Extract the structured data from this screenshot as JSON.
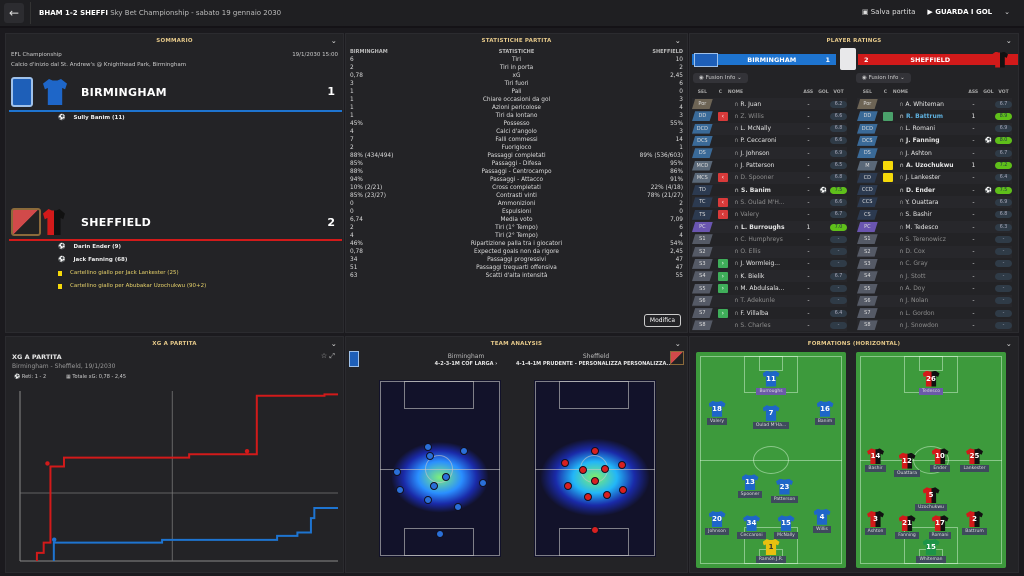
{
  "topbar": {
    "score_short": "BHAM 1-2 SHEFFI",
    "competition_date": "Sky Bet Championship - sabato 19 gennaio 2030",
    "save_label": "Salva partita",
    "goals_label": "GUARDA I GOL"
  },
  "summary": {
    "title": "SOMMARIO",
    "competition": "EFL Championship",
    "datetime": "19/1/2030 15:00",
    "venue": "Calcio d'inizio dal St. Andrew's @ Knighthead Park, Birmingham",
    "home": {
      "name": "BIRMINGHAM",
      "score": "1",
      "color": "#1e74d0",
      "events": [
        {
          "type": "goal",
          "text": "Sully Banim (11)"
        }
      ]
    },
    "away": {
      "name": "SHEFFIELD",
      "score": "2",
      "color": "#d21a1a",
      "events": [
        {
          "type": "goal",
          "text": "Darin Ender (9)"
        },
        {
          "type": "goal",
          "text": "Jack Fanning (68)"
        },
        {
          "type": "yellow",
          "text": "Cartellino giallo per Jack Lankester (25)"
        },
        {
          "type": "yellow",
          "text": "Cartellino giallo per Abubakar Uzochukwu (90+2)"
        }
      ]
    }
  },
  "stats": {
    "title": "STATISTICHE PARTITA",
    "headers": [
      "BIRMINGHAM",
      "STATISTICHE",
      "SHEFFIELD"
    ],
    "rows": [
      [
        "6",
        "Tiri",
        "10"
      ],
      [
        "2",
        "Tiri in porta",
        "2"
      ],
      [
        "0,78",
        "xG",
        "2,45"
      ],
      [
        "3",
        "Tiri fuori",
        "6"
      ],
      [
        "1",
        "Pali",
        "0"
      ],
      [
        "1",
        "Chiare occasioni da gol",
        "3"
      ],
      [
        "1",
        "Azioni pericolose",
        "4"
      ],
      [
        "1",
        "Tiri da lontano",
        "3"
      ],
      [
        "45%",
        "Possesso",
        "55%"
      ],
      [
        "4",
        "Calci d'angolo",
        "3"
      ],
      [
        "7",
        "Falli commessi",
        "14"
      ],
      [
        "2",
        "Fuorigioco",
        "1"
      ],
      [
        "88% (434/494)",
        "Passaggi completati",
        "89% (536/603)"
      ],
      [
        "85%",
        "Passaggi - Difesa",
        "95%"
      ],
      [
        "88%",
        "Passaggi - Centrocampo",
        "86%"
      ],
      [
        "94%",
        "Passaggi - Attacco",
        "91%"
      ],
      [
        "10% (2/21)",
        "Cross completati",
        "22% (4/18)"
      ],
      [
        "85% (23/27)",
        "Contrasti vinti",
        "78% (21/27)"
      ],
      [
        "0",
        "Ammonizioni",
        "2"
      ],
      [
        "0",
        "Espulsioni",
        "0"
      ],
      [
        "6,74",
        "Media voto",
        "7,09"
      ],
      [
        "2",
        "Tiri (1° Tempo)",
        "6"
      ],
      [
        "4",
        "Tiri (2° Tempo)",
        "4"
      ],
      [
        "46%",
        "Ripartizione palla tra i giocatori",
        "54%"
      ],
      [
        "0,78",
        "Expected goals non da rigore",
        "2,45"
      ],
      [
        "34",
        "Passaggi progressivi",
        "47"
      ],
      [
        "51",
        "Passaggi trequarti offensiva",
        "47"
      ],
      [
        "63",
        "Scatti d'alta intensità",
        "55"
      ]
    ],
    "edit_label": "Modifica"
  },
  "ratings": {
    "title": "PLAYER RATINGS",
    "fusion_label": "Fusion Info",
    "col_headers": [
      "SEL",
      "C",
      "NOME",
      "ASS",
      "GOL",
      "VOT"
    ],
    "home": {
      "name": "BIRMINGHAM",
      "score": "1",
      "players": [
        {
          "pos": "Por",
          "c": "",
          "name": "R. Juan",
          "ass": "-",
          "gol": "",
          "vot": "6.2",
          "dim": false
        },
        {
          "pos": "DD",
          "c": "out",
          "name": "Z. Willis",
          "ass": "-",
          "gol": "",
          "vot": "6.6",
          "dim": true
        },
        {
          "pos": "DCD",
          "c": "",
          "name": "L. McNally",
          "ass": "-",
          "gol": "",
          "vot": "6.8",
          "dim": false
        },
        {
          "pos": "DCS",
          "c": "",
          "name": "P. Ceccaroni",
          "ass": "-",
          "gol": "",
          "vot": "6.6",
          "dim": false
        },
        {
          "pos": "DS",
          "c": "",
          "name": "J. Johnson",
          "ass": "-",
          "gol": "",
          "vot": "6.9",
          "dim": false
        },
        {
          "pos": "MCD",
          "c": "",
          "name": "J. Patterson",
          "ass": "-",
          "gol": "",
          "vot": "6.5",
          "dim": false
        },
        {
          "pos": "MCS",
          "c": "out",
          "name": "D. Spooner",
          "ass": "-",
          "gol": "",
          "vot": "6.8",
          "dim": true
        },
        {
          "pos": "TD",
          "c": "",
          "name": "S. Banim",
          "ass": "-",
          "gol": "goal",
          "vot": "7.5",
          "dim": false,
          "hi": true
        },
        {
          "pos": "TC",
          "c": "out",
          "name": "S. Oulad M'H...",
          "ass": "-",
          "gol": "",
          "vot": "6.6",
          "dim": true
        },
        {
          "pos": "TS",
          "c": "out",
          "name": "Valery",
          "ass": "-",
          "gol": "",
          "vot": "6.7",
          "dim": true
        },
        {
          "pos": "PC",
          "c": "",
          "name": "L. Burroughs",
          "ass": "1",
          "gol": "",
          "vot": "7.0",
          "dim": false,
          "hi": true
        },
        {
          "pos": "S1",
          "c": "",
          "name": "C. Humphreys",
          "ass": "-",
          "gol": "",
          "vot": "-",
          "dim": true
        },
        {
          "pos": "S2",
          "c": "",
          "name": "O. Ellis",
          "ass": "-",
          "gol": "",
          "vot": "-",
          "dim": true
        },
        {
          "pos": "S3",
          "c": "in",
          "name": "J. Wormleig...",
          "ass": "-",
          "gol": "",
          "vot": "-",
          "dim": false
        },
        {
          "pos": "S4",
          "c": "in",
          "name": "K. Bielik",
          "ass": "-",
          "gol": "",
          "vot": "6.7",
          "dim": false
        },
        {
          "pos": "S5",
          "c": "in",
          "name": "M. Abdulsala...",
          "ass": "-",
          "gol": "",
          "vot": "-",
          "dim": false
        },
        {
          "pos": "S6",
          "c": "",
          "name": "T. Adekunle",
          "ass": "-",
          "gol": "",
          "vot": "-",
          "dim": true
        },
        {
          "pos": "S7",
          "c": "in",
          "name": "F. Villalba",
          "ass": "-",
          "gol": "",
          "vot": "6.4",
          "dim": false
        },
        {
          "pos": "S8",
          "c": "",
          "name": "S. Charles",
          "ass": "-",
          "gol": "",
          "vot": "-",
          "dim": true
        }
      ]
    },
    "away": {
      "name": "SHEFFIELD",
      "score": "2",
      "players": [
        {
          "pos": "Por",
          "c": "",
          "name": "A. Whiteman",
          "ass": "-",
          "gol": "",
          "vot": "6.7",
          "dim": false
        },
        {
          "pos": "DD",
          "c": "mc",
          "name": "R. Battrum",
          "ass": "1",
          "gol": "",
          "vot": "8.9",
          "dim": false,
          "hi": true,
          "blue": true
        },
        {
          "pos": "DCD",
          "c": "",
          "name": "L. Romani",
          "ass": "-",
          "gol": "",
          "vot": "6.9",
          "dim": false
        },
        {
          "pos": "DCS",
          "c": "",
          "name": "J. Fanning",
          "ass": "-",
          "gol": "goal",
          "vot": "8.0",
          "dim": false,
          "hi": true
        },
        {
          "pos": "DS",
          "c": "",
          "name": "J. Ashton",
          "ass": "-",
          "gol": "",
          "vot": "6.7",
          "dim": false
        },
        {
          "pos": "M",
          "c": "yellow",
          "name": "A. Uzochukwu",
          "ass": "1",
          "gol": "",
          "vot": "7.2",
          "dim": false,
          "hi": true
        },
        {
          "pos": "CD",
          "c": "yellow",
          "name": "J. Lankester",
          "ass": "-",
          "gol": "",
          "vot": "6.4",
          "dim": false
        },
        {
          "pos": "CCD",
          "c": "",
          "name": "D. Ender",
          "ass": "-",
          "gol": "goal",
          "vot": "7.5",
          "dim": false,
          "hi": true
        },
        {
          "pos": "CCS",
          "c": "",
          "name": "Y. Ouattara",
          "ass": "-",
          "gol": "",
          "vot": "6.9",
          "dim": false
        },
        {
          "pos": "CS",
          "c": "",
          "name": "S. Bashir",
          "ass": "-",
          "gol": "",
          "vot": "6.8",
          "dim": false
        },
        {
          "pos": "PC",
          "c": "",
          "name": "M. Tedesco",
          "ass": "-",
          "gol": "",
          "vot": "6.3",
          "dim": false
        },
        {
          "pos": "S1",
          "c": "",
          "name": "S. Terenowicz",
          "ass": "-",
          "gol": "",
          "vot": "-",
          "dim": true
        },
        {
          "pos": "S2",
          "c": "",
          "name": "D. Cox",
          "ass": "-",
          "gol": "",
          "vot": "-",
          "dim": true
        },
        {
          "pos": "S3",
          "c": "",
          "name": "C. Gray",
          "ass": "-",
          "gol": "",
          "vot": "-",
          "dim": true
        },
        {
          "pos": "S4",
          "c": "",
          "name": "J. Stott",
          "ass": "-",
          "gol": "",
          "vot": "-",
          "dim": true
        },
        {
          "pos": "S5",
          "c": "",
          "name": "A. Doy",
          "ass": "-",
          "gol": "",
          "vot": "-",
          "dim": true
        },
        {
          "pos": "S6",
          "c": "",
          "name": "J. Nolan",
          "ass": "-",
          "gol": "",
          "vot": "-",
          "dim": true
        },
        {
          "pos": "S7",
          "c": "",
          "name": "L. Gordon",
          "ass": "-",
          "gol": "",
          "vot": "-",
          "dim": true
        },
        {
          "pos": "S8",
          "c": "",
          "name": "J. Snowdon",
          "ass": "-",
          "gol": "",
          "vot": "-",
          "dim": true
        }
      ]
    }
  },
  "xg": {
    "panel_title": "XG A PARTITA",
    "title": "XG A PARTITA",
    "subtitle": "Birmingham - Sheffield, 19/1/2030",
    "goals": "Reti: 1 - 2",
    "total": "Totale xG: 0,78 - 2,45"
  },
  "chart_data": {
    "type": "line",
    "title": "XG A PARTITA",
    "xlabel": "minute",
    "ylabel": "cumulative xG",
    "xlim": [
      0,
      94
    ],
    "ylim": [
      0,
      2.5
    ],
    "series": [
      {
        "name": "Sheffield",
        "color": "#d21a1a",
        "points": [
          [
            5,
            0
          ],
          [
            5,
            0.12
          ],
          [
            7,
            0.12
          ],
          [
            7,
            0.27
          ],
          [
            9,
            0.27
          ],
          [
            9,
            1.39
          ],
          [
            13,
            1.39
          ],
          [
            13,
            1.52
          ],
          [
            50,
            1.52
          ],
          [
            50,
            1.57
          ],
          [
            70,
            1.57
          ],
          [
            70,
            2.43
          ],
          [
            90,
            2.43
          ],
          [
            90,
            2.45
          ],
          [
            94,
            2.45
          ]
        ],
        "goal_minutes": [
          9,
          68
        ]
      },
      {
        "name": "Birmingham",
        "color": "#1e74d0",
        "points": [
          [
            10,
            0
          ],
          [
            10,
            0.27
          ],
          [
            42,
            0.27
          ],
          [
            42,
            0.31
          ],
          [
            76,
            0.31
          ],
          [
            76,
            0.37
          ],
          [
            82,
            0.37
          ],
          [
            82,
            0.42
          ],
          [
            86,
            0.42
          ],
          [
            86,
            0.63
          ],
          [
            87,
            0.63
          ],
          [
            87,
            0.78
          ],
          [
            94,
            0.78
          ]
        ],
        "goal_minutes": [
          11
        ]
      }
    ],
    "grid": true
  },
  "team_analysis": {
    "title": "TEAM ANALYSIS",
    "home": {
      "name": "Birmingham",
      "formation": "4-2-3-1M COF LARGA"
    },
    "away": {
      "name": "Sheffield",
      "formation": "4-1-4-1M PRUDENTE - PERSONALIZZA PERSONALIZZA..."
    }
  },
  "formations": {
    "title": "FORMATIONS (HORIZONTAL)",
    "home": [
      {
        "num": "11",
        "name": "Burroughs",
        "cap": true
      },
      {
        "num": "18",
        "name": "Valery"
      },
      {
        "num": "7",
        "name": "Oulad M'Ha..."
      },
      {
        "num": "16",
        "name": "Banim"
      },
      {
        "num": "13",
        "name": "Spooner"
      },
      {
        "num": "23",
        "name": "Patterson"
      },
      {
        "num": "20",
        "name": "Johnson"
      },
      {
        "num": "34",
        "name": "Ceccaroni"
      },
      {
        "num": "15",
        "name": "McNally"
      },
      {
        "num": "4",
        "name": "Willis"
      },
      {
        "num": "1",
        "name": "Ramón J.R.",
        "gk": true
      }
    ],
    "away": [
      {
        "num": "26",
        "name": "Tedesco",
        "cap": true
      },
      {
        "num": "14",
        "name": "Bashir"
      },
      {
        "num": "12",
        "name": "Ouattara"
      },
      {
        "num": "10",
        "name": "Ender"
      },
      {
        "num": "25",
        "name": "Lankester"
      },
      {
        "num": "5",
        "name": "Uzochukwu"
      },
      {
        "num": "3",
        "name": "Ashton"
      },
      {
        "num": "21",
        "name": "Fanning"
      },
      {
        "num": "17",
        "name": "Romani"
      },
      {
        "num": "2",
        "name": "Battrum"
      },
      {
        "num": "15",
        "name": "Whiteman",
        "gk": true
      }
    ]
  }
}
